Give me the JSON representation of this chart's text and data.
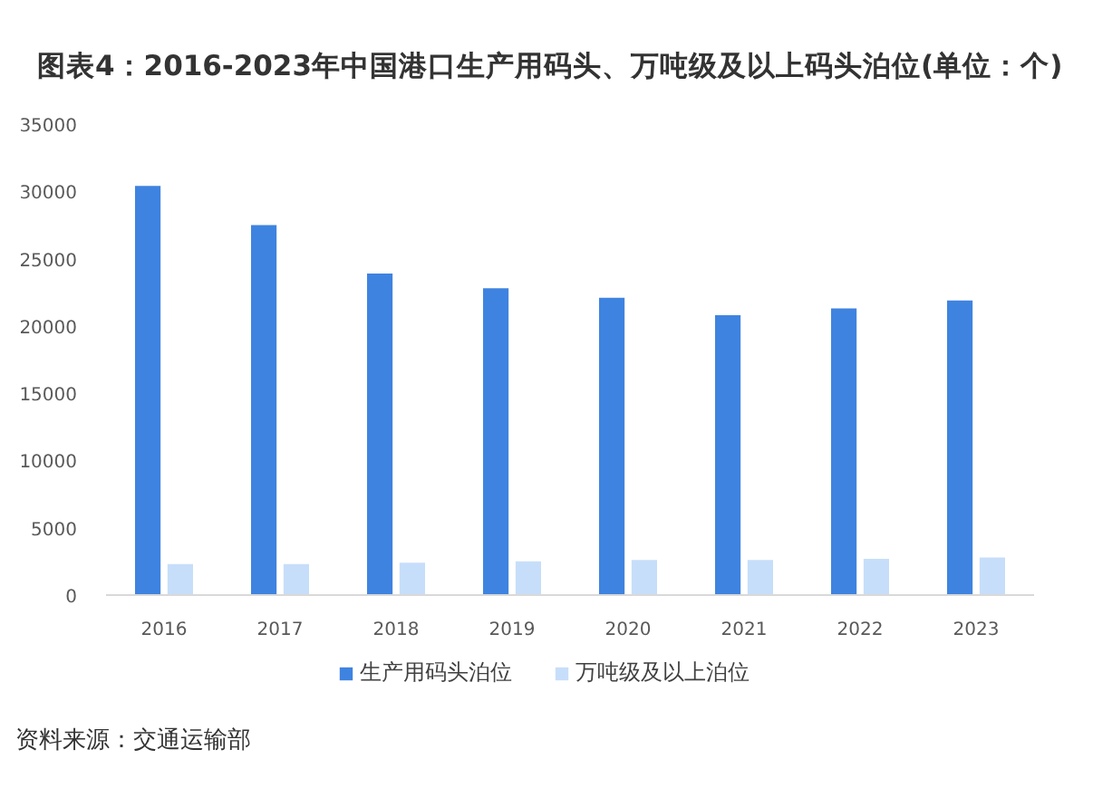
{
  "chart_data": {
    "type": "bar",
    "title": "图表4：2016-2023年中国港口生产用码头、万吨级及以上码头泊位(单位：个)",
    "categories": [
      "2016",
      "2017",
      "2018",
      "2019",
      "2020",
      "2021",
      "2022",
      "2023"
    ],
    "series": [
      {
        "name": "生产用码头泊位",
        "color": "#3f83e0",
        "values": [
          30400,
          27500,
          23900,
          22800,
          22100,
          20800,
          21300,
          21900
        ]
      },
      {
        "name": "万吨级及以上泊位",
        "color": "#c7defa",
        "values": [
          2300,
          2300,
          2400,
          2500,
          2600,
          2600,
          2700,
          2800
        ]
      }
    ],
    "ylim": [
      0,
      35000
    ],
    "yticks": [
      0,
      5000,
      10000,
      15000,
      20000,
      25000,
      30000,
      35000
    ],
    "legend": "bottom",
    "annotations": [
      "资料来源：交通运输部"
    ]
  }
}
